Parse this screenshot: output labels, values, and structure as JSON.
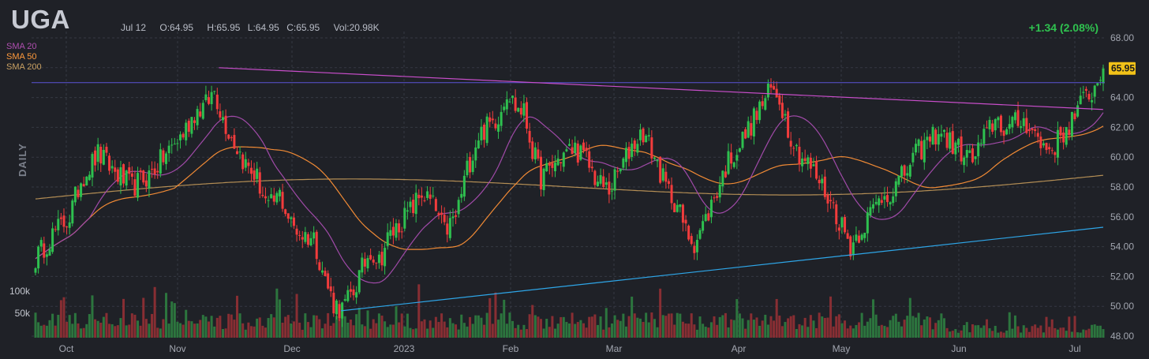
{
  "header": {
    "ticker": "UGA",
    "date": "Jul 12",
    "open": "O:64.95",
    "high": "H:65.95",
    "low": "L:64.95",
    "close": "C:65.95",
    "volume": "Vol:20.98K",
    "change": "+1.34 (2.08%)"
  },
  "legend": {
    "sma20": "SMA 20",
    "sma50": "SMA 50",
    "sma200": "SMA 200"
  },
  "side_label": "DAILY",
  "chart_data": {
    "type": "candlestick",
    "title": "",
    "period": "DAILY",
    "ylim": [
      48,
      68
    ],
    "y_ticks": [
      "68.00",
      "66.00",
      "64.00",
      "62.00",
      "60.00",
      "58.00",
      "56.00",
      "54.00",
      "52.00",
      "50.00",
      "48.00"
    ],
    "x_ticks": [
      "Oct",
      "Nov",
      "Dec",
      "2023",
      "Feb",
      "Mar",
      "Apr",
      "May",
      "Jun",
      "Jul"
    ],
    "volume_ticks": [
      "100k",
      "50k"
    ],
    "last_price": "65.95",
    "price_path": [
      [
        0,
        53.2
      ],
      [
        6,
        54.8
      ],
      [
        12,
        56.0
      ],
      [
        16,
        58.5
      ],
      [
        22,
        60.2
      ],
      [
        28,
        59.0
      ],
      [
        34,
        58.0
      ],
      [
        40,
        58.8
      ],
      [
        46,
        60.2
      ],
      [
        52,
        61.6
      ],
      [
        56,
        63.0
      ],
      [
        60,
        63.5
      ],
      [
        63,
        64.5
      ],
      [
        66,
        62.6
      ],
      [
        70,
        61.0
      ],
      [
        74,
        59.5
      ],
      [
        78,
        58.6
      ],
      [
        82,
        56.5
      ],
      [
        86,
        57.5
      ],
      [
        90,
        55.5
      ],
      [
        94,
        54.8
      ],
      [
        98,
        54.6
      ],
      [
        102,
        51.8
      ],
      [
        105,
        50.2
      ],
      [
        108,
        49.8
      ],
      [
        112,
        51.0
      ],
      [
        115,
        52.5
      ],
      [
        118,
        53.8
      ],
      [
        121,
        53.0
      ],
      [
        124,
        54.5
      ],
      [
        128,
        55.5
      ],
      [
        132,
        56.4
      ],
      [
        136,
        57.6
      ],
      [
        140,
        56.8
      ],
      [
        144,
        55.0
      ],
      [
        148,
        56.0
      ],
      [
        152,
        59.2
      ],
      [
        156,
        61.5
      ],
      [
        160,
        62.2
      ],
      [
        163,
        62.8
      ],
      [
        166,
        64.5
      ],
      [
        169,
        63.4
      ],
      [
        172,
        63.0
      ],
      [
        175,
        60.5
      ],
      [
        178,
        58.6
      ],
      [
        182,
        59.4
      ],
      [
        186,
        60.2
      ],
      [
        190,
        60.6
      ],
      [
        194,
        59.8
      ],
      [
        198,
        58.3
      ],
      [
        202,
        57.8
      ],
      [
        206,
        59.2
      ],
      [
        210,
        60.8
      ],
      [
        214,
        61.7
      ],
      [
        218,
        60.0
      ],
      [
        222,
        58.0
      ],
      [
        226,
        56.8
      ],
      [
        229,
        55.0
      ],
      [
        232,
        54.3
      ],
      [
        236,
        55.8
      ],
      [
        240,
        57.8
      ],
      [
        244,
        59.8
      ],
      [
        248,
        60.8
      ],
      [
        252,
        62.2
      ],
      [
        256,
        63.6
      ],
      [
        259,
        64.5
      ],
      [
        262,
        64.0
      ],
      [
        265,
        62.0
      ],
      [
        268,
        60.5
      ],
      [
        272,
        59.6
      ],
      [
        276,
        58.4
      ],
      [
        280,
        57.0
      ],
      [
        284,
        55.4
      ],
      [
        287,
        54.0
      ],
      [
        290,
        55.0
      ],
      [
        294,
        56.2
      ],
      [
        298,
        57.4
      ],
      [
        302,
        57.8
      ],
      [
        306,
        58.9
      ],
      [
        310,
        60.2
      ],
      [
        314,
        61.0
      ],
      [
        318,
        61.8
      ],
      [
        322,
        61.0
      ],
      [
        326,
        60.4
      ],
      [
        330,
        59.8
      ],
      [
        334,
        61.2
      ],
      [
        338,
        62.6
      ],
      [
        342,
        61.8
      ],
      [
        346,
        62.4
      ],
      [
        350,
        62.3
      ],
      [
        354,
        60.8
      ],
      [
        358,
        60.6
      ],
      [
        362,
        61.6
      ],
      [
        366,
        62.8
      ],
      [
        370,
        64.1
      ],
      [
        373,
        64.6
      ],
      [
        376,
        65.95
      ]
    ],
    "trendlines": [
      {
        "color": "#c94ecb",
        "points": [
          [
            "2022-11-08",
            66.0
          ],
          [
            "2023-07-12",
            63.2
          ]
        ]
      },
      {
        "color": "#2ea6e8",
        "points": [
          [
            "2022-12-12",
            49.7
          ],
          [
            "2023-07-12",
            55.3
          ]
        ]
      }
    ],
    "horizontal_line": {
      "color": "#5a52d6",
      "value": 65.0
    }
  }
}
